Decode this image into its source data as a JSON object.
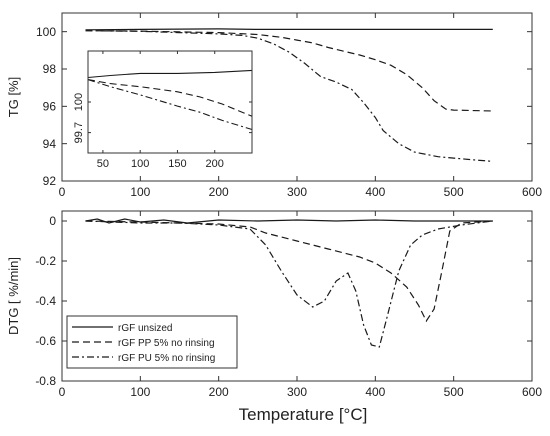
{
  "figure": {
    "xlabel": "Temperature [°C]"
  },
  "chart_data": [
    {
      "type": "line",
      "panel": "top",
      "ylabel": "TG [%]",
      "xlim": [
        0,
        600
      ],
      "ylim": [
        92,
        101
      ],
      "x_ticks": [
        0,
        100,
        200,
        300,
        400,
        500,
        600
      ],
      "y_ticks": [
        92,
        94,
        96,
        98,
        100
      ],
      "x_tick_labels": [
        "0",
        "100",
        "200",
        "300",
        "400",
        "500",
        "600"
      ],
      "y_tick_labels": [
        "92",
        "94",
        "96",
        "98",
        "100"
      ],
      "series": [
        {
          "style": "solid",
          "points": [
            [
              30,
              100.1
            ],
            [
              100,
              100.12
            ],
            [
              200,
              100.15
            ],
            [
              250,
              100.12
            ],
            [
              300,
              100.12
            ],
            [
              350,
              100.12
            ],
            [
              400,
              100.12
            ],
            [
              450,
              100.12
            ],
            [
              500,
              100.12
            ],
            [
              550,
              100.12
            ]
          ]
        },
        {
          "style": "dashed",
          "points": [
            [
              30,
              100.05
            ],
            [
              100,
              100.03
            ],
            [
              150,
              99.99
            ],
            [
              200,
              99.95
            ],
            [
              250,
              99.85
            ],
            [
              280,
              99.7
            ],
            [
              300,
              99.55
            ],
            [
              320,
              99.4
            ],
            [
              340,
              99.15
            ],
            [
              360,
              98.95
            ],
            [
              380,
              98.75
            ],
            [
              400,
              98.5
            ],
            [
              420,
              98.2
            ],
            [
              440,
              97.7
            ],
            [
              460,
              97.0
            ],
            [
              475,
              96.3
            ],
            [
              490,
              95.85
            ],
            [
              500,
              95.8
            ],
            [
              550,
              95.75
            ]
          ]
        },
        {
          "style": "dashdot",
          "points": [
            [
              30,
              100.05
            ],
            [
              100,
              100.02
            ],
            [
              150,
              99.95
            ],
            [
              200,
              99.88
            ],
            [
              230,
              99.8
            ],
            [
              250,
              99.65
            ],
            [
              270,
              99.35
            ],
            [
              290,
              98.9
            ],
            [
              310,
              98.3
            ],
            [
              330,
              97.6
            ],
            [
              350,
              97.3
            ],
            [
              370,
              96.9
            ],
            [
              385,
              96.2
            ],
            [
              400,
              95.4
            ],
            [
              410,
              94.7
            ],
            [
              430,
              94.0
            ],
            [
              450,
              93.55
            ],
            [
              480,
              93.3
            ],
            [
              520,
              93.15
            ],
            [
              550,
              93.05
            ]
          ]
        }
      ],
      "inset": {
        "xlim": [
          30,
          250
        ],
        "ylim": [
          99.5,
          100.5
        ],
        "x_ticks": [
          50,
          100,
          150,
          200
        ],
        "y_ticks": [
          99.7,
          100
        ],
        "x_tick_labels": [
          "50",
          "100",
          "150",
          "200"
        ],
        "y_tick_labels": [
          "99.7",
          "100"
        ],
        "series": [
          {
            "style": "solid",
            "points": [
              [
                30,
                100.24
              ],
              [
                60,
                100.26
              ],
              [
                100,
                100.28
              ],
              [
                150,
                100.28
              ],
              [
                200,
                100.29
              ],
              [
                250,
                100.31
              ]
            ]
          },
          {
            "style": "dashed",
            "points": [
              [
                30,
                100.22
              ],
              [
                60,
                100.18
              ],
              [
                100,
                100.15
              ],
              [
                150,
                100.1
              ],
              [
                180,
                100.05
              ],
              [
                210,
                99.98
              ],
              [
                250,
                99.86
              ]
            ]
          },
          {
            "style": "dashdot",
            "points": [
              [
                30,
                100.22
              ],
              [
                60,
                100.15
              ],
              [
                100,
                100.07
              ],
              [
                150,
                99.96
              ],
              [
                180,
                99.9
              ],
              [
                210,
                99.82
              ],
              [
                250,
                99.73
              ]
            ]
          }
        ]
      }
    },
    {
      "type": "line",
      "panel": "bottom",
      "ylabel": "DTG  [ %/min]",
      "xlim": [
        0,
        600
      ],
      "ylim": [
        -0.8,
        0.05
      ],
      "x_ticks": [
        0,
        100,
        200,
        300,
        400,
        500,
        600
      ],
      "y_ticks": [
        -0.8,
        -0.6,
        -0.4,
        -0.2,
        0
      ],
      "x_tick_labels": [
        "0",
        "100",
        "200",
        "300",
        "400",
        "500",
        "600"
      ],
      "y_tick_labels": [
        "-0.8",
        "-0.6",
        "-0.4",
        "-0.2",
        "0"
      ],
      "legend": {
        "placement": "lower-left",
        "entries": [
          {
            "label": "rGF unsized",
            "style": "solid"
          },
          {
            "label": "rGF PP 5% no rinsing",
            "style": "dashed"
          },
          {
            "label": "rGF PU 5% no rinsing",
            "style": "dashdot"
          }
        ]
      },
      "series": [
        {
          "name": "rGF unsized",
          "style": "solid",
          "points": [
            [
              30,
              0.0
            ],
            [
              45,
              0.01
            ],
            [
              60,
              -0.01
            ],
            [
              80,
              0.01
            ],
            [
              100,
              -0.005
            ],
            [
              130,
              0.005
            ],
            [
              160,
              -0.01
            ],
            [
              200,
              0.005
            ],
            [
              250,
              0.0
            ],
            [
              300,
              0.005
            ],
            [
              350,
              0.0
            ],
            [
              400,
              0.005
            ],
            [
              450,
              0.0
            ],
            [
              500,
              0.0
            ],
            [
              550,
              0.0
            ]
          ]
        },
        {
          "name": "rGF PP 5% no rinsing",
          "style": "dashed",
          "points": [
            [
              30,
              0.0
            ],
            [
              100,
              -0.005
            ],
            [
              150,
              -0.01
            ],
            [
              200,
              -0.015
            ],
            [
              240,
              -0.03
            ],
            [
              260,
              -0.06
            ],
            [
              280,
              -0.08
            ],
            [
              300,
              -0.1
            ],
            [
              320,
              -0.12
            ],
            [
              340,
              -0.14
            ],
            [
              360,
              -0.16
            ],
            [
              380,
              -0.18
            ],
            [
              400,
              -0.21
            ],
            [
              420,
              -0.26
            ],
            [
              440,
              -0.33
            ],
            [
              455,
              -0.42
            ],
            [
              465,
              -0.5
            ],
            [
              475,
              -0.44
            ],
            [
              485,
              -0.25
            ],
            [
              495,
              -0.05
            ],
            [
              510,
              -0.01
            ],
            [
              550,
              0.0
            ]
          ]
        },
        {
          "name": "rGF PU 5% no rinsing",
          "style": "dashdot",
          "points": [
            [
              30,
              0.0
            ],
            [
              100,
              -0.01
            ],
            [
              150,
              -0.01
            ],
            [
              200,
              -0.02
            ],
            [
              240,
              -0.04
            ],
            [
              260,
              -0.12
            ],
            [
              280,
              -0.25
            ],
            [
              300,
              -0.37
            ],
            [
              320,
              -0.43
            ],
            [
              335,
              -0.4
            ],
            [
              350,
              -0.3
            ],
            [
              365,
              -0.26
            ],
            [
              375,
              -0.35
            ],
            [
              385,
              -0.52
            ],
            [
              395,
              -0.62
            ],
            [
              405,
              -0.63
            ],
            [
              415,
              -0.48
            ],
            [
              430,
              -0.25
            ],
            [
              445,
              -0.12
            ],
            [
              460,
              -0.07
            ],
            [
              480,
              -0.04
            ],
            [
              510,
              -0.02
            ],
            [
              550,
              0.0
            ]
          ]
        }
      ]
    }
  ]
}
